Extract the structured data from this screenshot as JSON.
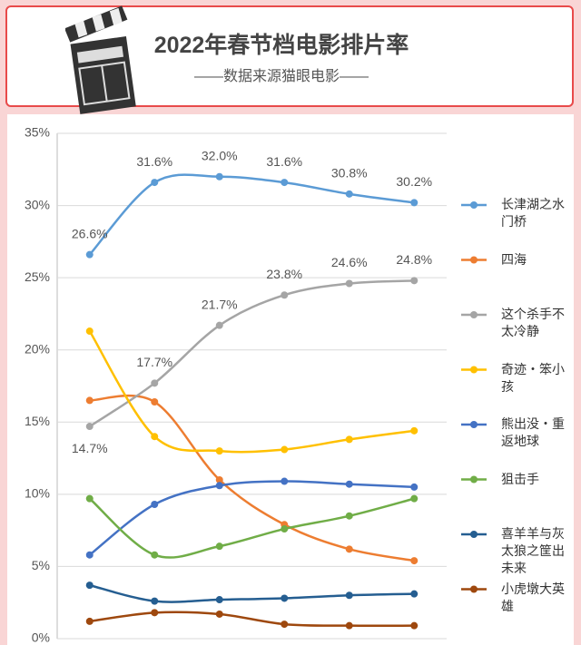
{
  "chart_data": {
    "type": "line",
    "title": "2022年春节档电影排片率",
    "subtitle": "——数据来源猫眼电影——",
    "categories": [
      null,
      null,
      null,
      null,
      null,
      null
    ],
    "ylim": [
      0,
      35
    ],
    "yticks": [
      {
        "value": 0,
        "label": "0%"
      },
      {
        "value": 5,
        "label": "5%"
      },
      {
        "value": 10,
        "label": "10%"
      },
      {
        "value": 15,
        "label": "15%"
      },
      {
        "value": 20,
        "label": "20%"
      },
      {
        "value": 25,
        "label": "25%"
      },
      {
        "value": 30,
        "label": "30%"
      },
      {
        "value": 35,
        "label": "35%"
      }
    ],
    "grid": true,
    "legend": "right",
    "series": [
      {
        "name": "长津湖之水门桥",
        "color": "#5b9bd5",
        "values": [
          26.6,
          31.6,
          32.0,
          31.6,
          30.8,
          30.2
        ],
        "value_labels": [
          "26.6%",
          "31.6%",
          "32.0%",
          "31.6%",
          "30.8%",
          "30.2%"
        ]
      },
      {
        "name": "四海",
        "color": "#ed7d31",
        "values": [
          16.5,
          16.4,
          11.0,
          7.9,
          6.2,
          5.4
        ]
      },
      {
        "name": "这个杀手不太冷静",
        "color": "#a5a5a5",
        "values": [
          14.7,
          17.7,
          21.7,
          23.8,
          24.6,
          24.8
        ],
        "value_labels": [
          "14.7%",
          "17.7%",
          "21.7%",
          "23.8%",
          "24.6%",
          "24.8%"
        ]
      },
      {
        "name": "奇迹・笨小孩",
        "color": "#ffc000",
        "values": [
          21.3,
          14.0,
          13.0,
          13.1,
          13.8,
          14.4
        ]
      },
      {
        "name": "熊出没・重返地球",
        "color": "#4472c4",
        "values": [
          5.8,
          9.3,
          10.6,
          10.9,
          10.7,
          10.5
        ]
      },
      {
        "name": "狙击手",
        "color": "#70ad47",
        "values": [
          9.7,
          5.8,
          6.4,
          7.6,
          8.5,
          9.7
        ]
      },
      {
        "name": "喜羊羊与灰太狼之筐出未来",
        "color": "#255e91",
        "values": [
          3.7,
          2.6,
          2.7,
          2.8,
          3.0,
          3.1
        ]
      },
      {
        "name": "小虎墩大英雄",
        "color": "#9e480e",
        "values": [
          1.2,
          1.8,
          1.7,
          1.0,
          0.9,
          0.9
        ]
      }
    ]
  }
}
